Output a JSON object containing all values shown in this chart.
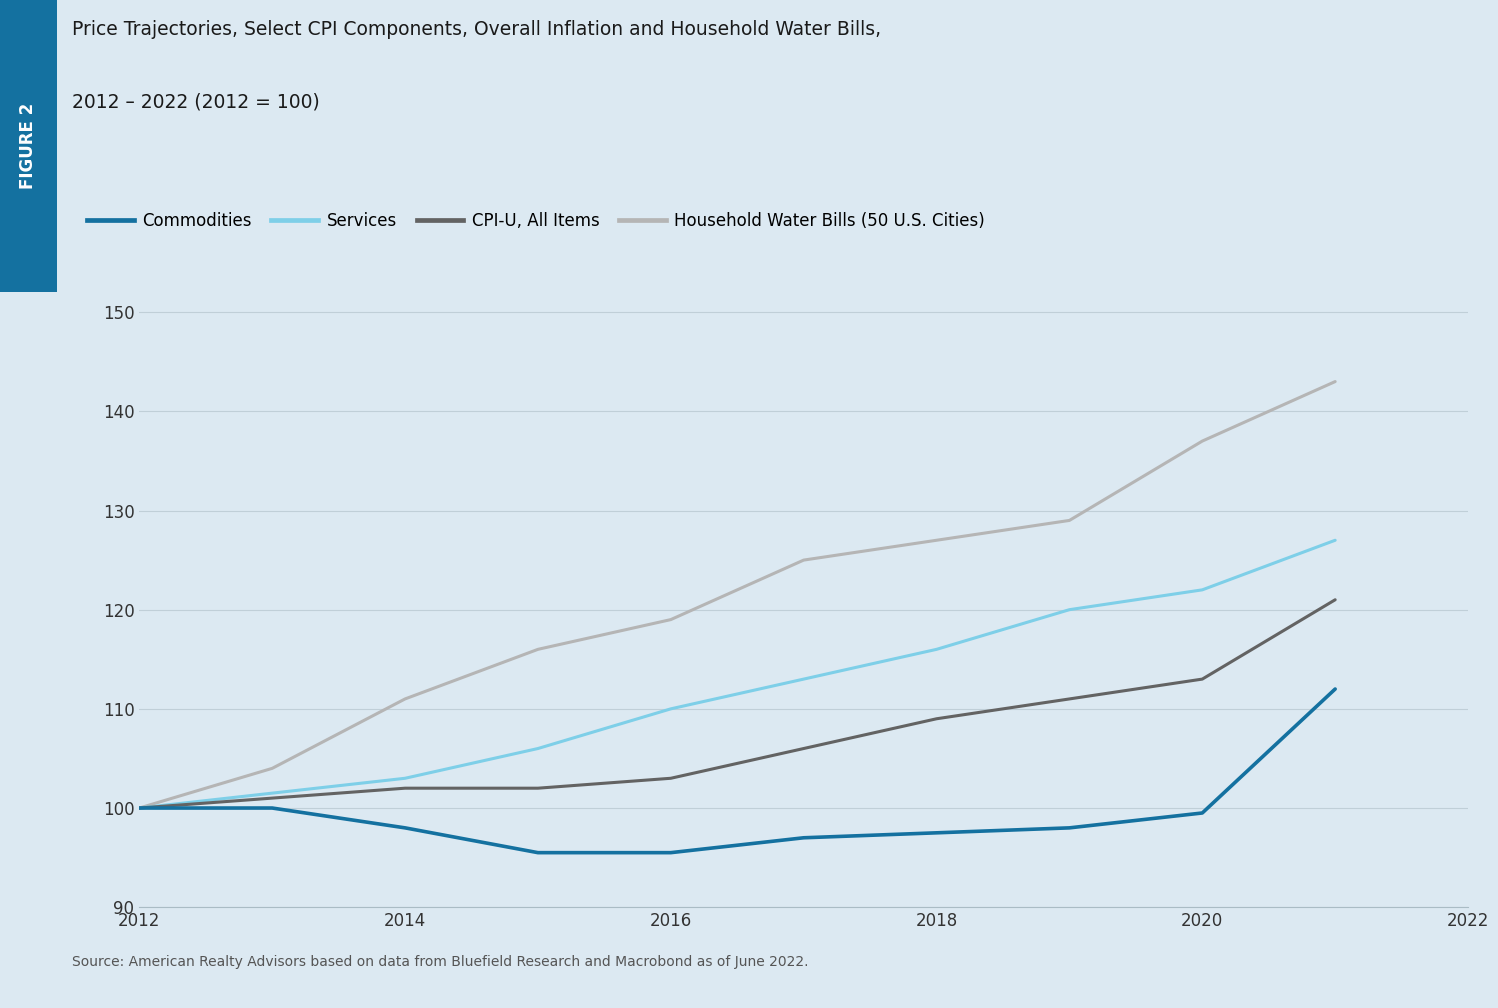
{
  "title_line1": "Price Trajectories, Select CPI Components, Overall Inflation and Household Water Bills,",
  "title_line2": "2012 – 2022 (2012 = 100)",
  "figure_label": "FIGURE 2",
  "source_text": "Source: American Realty Advisors based on data from Bluefield Research and Macrobond as of June 2022.",
  "commodities_x": [
    2012,
    2013,
    2014,
    2015,
    2016,
    2017,
    2018,
    2019,
    2020,
    2021
  ],
  "commodities_y": [
    100,
    100,
    98,
    95.5,
    95.5,
    97,
    97.5,
    98,
    99.5,
    112
  ],
  "services_x": [
    2012,
    2013,
    2014,
    2015,
    2016,
    2017,
    2018,
    2019,
    2020,
    2021
  ],
  "services_y": [
    100,
    101.5,
    103,
    106,
    110,
    113,
    116,
    120,
    122,
    127
  ],
  "cpi_x": [
    2012,
    2013,
    2014,
    2015,
    2016,
    2017,
    2018,
    2019,
    2020,
    2021
  ],
  "cpi_y": [
    100,
    101,
    102,
    102,
    103,
    106,
    109,
    111,
    113,
    121
  ],
  "water_x": [
    2012,
    2013,
    2014,
    2015,
    2016,
    2017,
    2018,
    2019,
    2020,
    2021
  ],
  "water_y": [
    100,
    104,
    111,
    116,
    119,
    125,
    127,
    129,
    137,
    143
  ],
  "commodities_color": "#1471a0",
  "services_color": "#7ecfe8",
  "cpi_u_color": "#636363",
  "water_bills_color": "#b5b5b5",
  "commodities_label": "Commodities",
  "services_label": "Services",
  "cpi_u_label": "CPI-U, All Items",
  "water_bills_label": "Household Water Bills (50 U.S. Cities)",
  "ylim": [
    90,
    152
  ],
  "yticks": [
    90,
    100,
    110,
    120,
    130,
    140,
    150
  ],
  "xlim": [
    2012,
    2022
  ],
  "xticks": [
    2012,
    2014,
    2016,
    2018,
    2020,
    2022
  ],
  "line_width": 2.2,
  "figure_bg": "#dce9f2",
  "sidebar_color": "#1471a0",
  "sidebar_text_color": "#ffffff",
  "title_fontsize": 13.5,
  "tick_fontsize": 12,
  "legend_fontsize": 12,
  "source_fontsize": 10
}
